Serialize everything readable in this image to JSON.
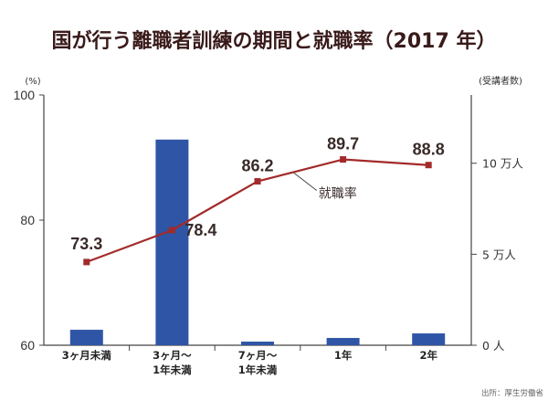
{
  "chart_data": {
    "type": "bar+line",
    "title": "国が行う離職者訓練の期間と就職率（2017 年）",
    "categories": [
      "3ヶ月未満",
      "3ヶ月〜\n1年未満",
      "7ヶ月〜\n1年未満",
      "1年",
      "2年"
    ],
    "bars": {
      "axis": "right",
      "values": [
        0.85,
        11.3,
        0.2,
        0.4,
        0.65
      ]
    },
    "line": {
      "name": "就職率",
      "axis": "left",
      "values": [
        73.3,
        78.4,
        86.2,
        89.7,
        88.8
      ],
      "labels": [
        "73.3",
        "78.4",
        "86.2",
        "89.7",
        "88.8"
      ]
    },
    "y_left": {
      "label": "(%)",
      "ylim": [
        60,
        100
      ],
      "ticks": [
        60,
        80,
        100
      ]
    },
    "y_right": {
      "label": "(受講者数)",
      "ylim": [
        0,
        13.75
      ],
      "ticks": [
        0,
        5,
        10
      ],
      "tick_labels": [
        "0 人",
        "5 万人",
        "10 万人"
      ]
    },
    "source": "出所：厚生労働省",
    "colors": {
      "bar": "#2f56a6",
      "line": "#a32a2a",
      "axis": "#444444",
      "title": "#3a1a1a"
    }
  }
}
